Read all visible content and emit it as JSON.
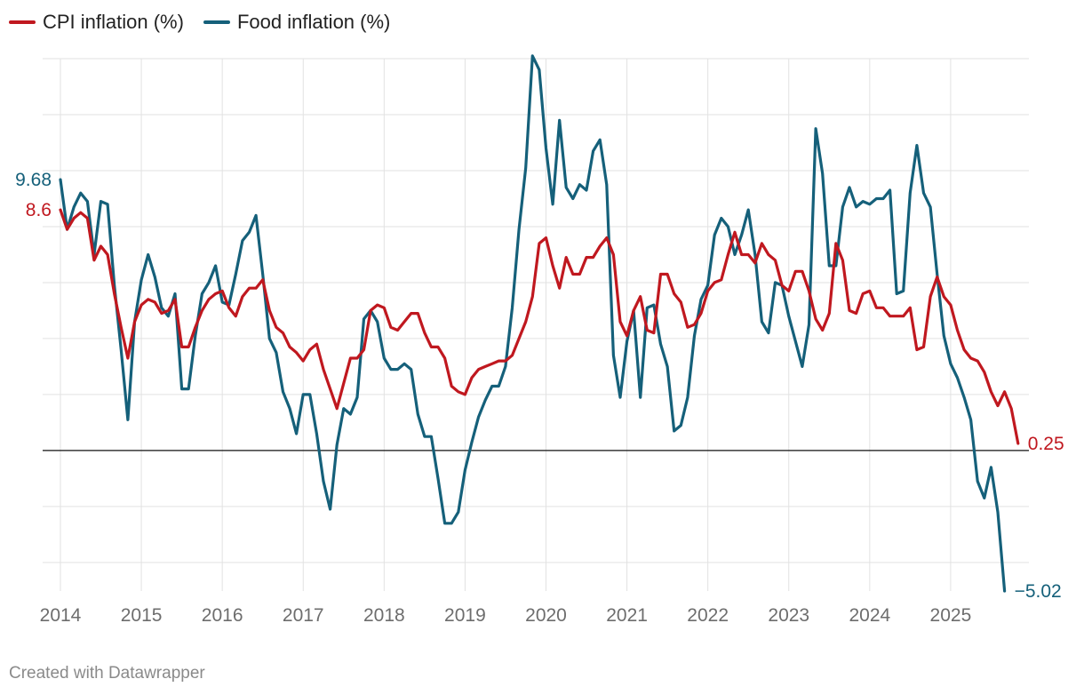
{
  "chart_data": {
    "type": "line",
    "title": "",
    "xlabel": "",
    "ylabel": "",
    "x_ticks": [
      "2014",
      "2015",
      "2016",
      "2017",
      "2018",
      "2019",
      "2020",
      "2021",
      "2022",
      "2023",
      "2024",
      "2025"
    ],
    "xlim": [
      2014.0,
      2026.0
    ],
    "ylim": [
      -5.02,
      14.0
    ],
    "y_grid": [
      -4,
      -2,
      0,
      2,
      4,
      6,
      8,
      10,
      12,
      14
    ],
    "baseline": 0,
    "legend_position": "top-left",
    "series": [
      {
        "name": "CPI inflation (%)",
        "color": "#c0181f",
        "end_label": "0.25",
        "start_label": "8.6",
        "x_start": 2014.0,
        "x_step": 0.08333,
        "values": [
          8.6,
          7.9,
          8.3,
          8.5,
          8.3,
          6.8,
          7.3,
          7.0,
          5.6,
          4.4,
          3.3,
          4.6,
          5.2,
          5.4,
          5.3,
          4.9,
          5.0,
          5.4,
          3.7,
          3.7,
          4.4,
          5.0,
          5.4,
          5.6,
          5.7,
          5.1,
          4.8,
          5.5,
          5.8,
          5.8,
          6.1,
          5.0,
          4.4,
          4.2,
          3.7,
          3.5,
          3.2,
          3.6,
          3.8,
          2.9,
          2.2,
          1.5,
          2.4,
          3.3,
          3.3,
          3.6,
          5.0,
          5.2,
          5.1,
          4.4,
          4.3,
          4.6,
          4.9,
          4.9,
          4.2,
          3.7,
          3.7,
          3.3,
          2.3,
          2.1,
          2.0,
          2.6,
          2.9,
          3.0,
          3.1,
          3.2,
          3.2,
          3.4,
          4.0,
          4.6,
          5.5,
          7.4,
          7.6,
          6.6,
          5.8,
          6.9,
          6.3,
          6.3,
          6.9,
          6.9,
          7.3,
          7.6,
          7.0,
          4.6,
          4.1,
          5.0,
          5.5,
          4.3,
          4.2,
          6.3,
          6.3,
          5.6,
          5.3,
          4.4,
          4.5,
          4.9,
          5.7,
          6.0,
          6.1,
          7.0,
          7.8,
          7.0,
          7.0,
          6.7,
          7.4,
          7.0,
          6.8,
          5.9,
          5.7,
          6.4,
          6.4,
          5.7,
          4.7,
          4.3,
          4.9,
          7.4,
          6.8,
          5.0,
          4.9,
          5.6,
          5.7,
          5.1,
          5.1,
          4.8,
          4.8,
          4.8,
          5.1,
          3.6,
          3.7,
          5.5,
          6.2,
          5.5,
          5.2,
          4.3,
          3.6,
          3.3,
          3.2,
          2.8,
          2.1,
          1.6,
          2.1,
          1.5,
          0.25
        ]
      },
      {
        "name": "Food inflation (%)",
        "color": "#15607a",
        "end_label": "−5.02",
        "start_label": "9.68",
        "x_start": 2014.0,
        "x_step": 0.08333,
        "values": [
          9.68,
          7.9,
          8.7,
          9.2,
          8.9,
          7.0,
          8.9,
          8.8,
          5.9,
          3.6,
          1.1,
          4.6,
          6.1,
          7.0,
          6.2,
          5.1,
          4.8,
          5.6,
          2.2,
          2.2,
          4.1,
          5.6,
          6.0,
          6.6,
          5.3,
          5.2,
          6.3,
          7.5,
          7.8,
          8.4,
          6.3,
          4.0,
          3.5,
          2.1,
          1.5,
          0.6,
          2.0,
          2.0,
          0.6,
          -1.1,
          -2.1,
          0.2,
          1.5,
          1.3,
          1.9,
          4.7,
          5.0,
          4.6,
          3.3,
          2.9,
          2.9,
          3.1,
          2.9,
          1.3,
          0.5,
          0.5,
          -1.0,
          -2.6,
          -2.6,
          -2.2,
          -0.7,
          0.3,
          1.2,
          1.8,
          2.3,
          2.3,
          3.0,
          5.1,
          7.9,
          10.1,
          14.1,
          13.6,
          10.8,
          8.8,
          11.8,
          9.4,
          9.0,
          9.5,
          9.3,
          10.7,
          11.1,
          9.5,
          3.4,
          1.9,
          3.9,
          5.0,
          1.9,
          5.1,
          5.2,
          3.8,
          3.0,
          0.7,
          0.9,
          1.9,
          4.1,
          5.4,
          5.9,
          7.7,
          8.3,
          8.0,
          7.0,
          7.7,
          8.6,
          7.0,
          4.6,
          4.2,
          6.0,
          5.9,
          4.8,
          3.9,
          3.0,
          4.5,
          11.5,
          9.9,
          6.6,
          6.6,
          8.7,
          9.4,
          8.7,
          8.9,
          8.8,
          9.0,
          9.0,
          9.3,
          5.6,
          5.7,
          9.2,
          10.9,
          9.2,
          8.7,
          6.3,
          4.1,
          3.1,
          2.6,
          1.9,
          1.1,
          -1.1,
          -1.7,
          -0.6,
          -2.2,
          -5.02
        ]
      }
    ]
  },
  "legend": {
    "items": [
      {
        "label": "CPI inflation (%)",
        "color": "#c0181f"
      },
      {
        "label": "Food inflation (%)",
        "color": "#15607a"
      }
    ]
  },
  "footer": {
    "text": "Created with Datawrapper"
  }
}
